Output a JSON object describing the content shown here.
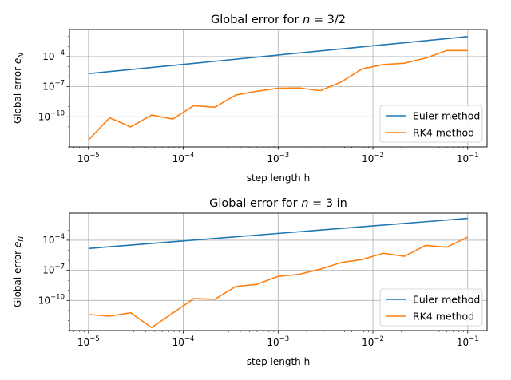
{
  "chart_data": [
    {
      "type": "line",
      "title": "Global error for n = 3/2",
      "title_parts": {
        "prefix": "Global error for ",
        "var": "n",
        "suffix": " = 3/2"
      },
      "xlabel": "step length h",
      "ylabel": "Global error e_N",
      "ylabel_parts": {
        "base": "Global error ",
        "var": "e",
        "sub": "N"
      },
      "xscale": "log",
      "yscale": "log",
      "xlim": [
        6.3e-06,
        0.16
      ],
      "ylim": [
        1e-13,
        0.05
      ],
      "x_ticks": [
        {
          "value": 1e-05,
          "label": "10",
          "exp": "−5"
        },
        {
          "value": 0.0001,
          "label": "10",
          "exp": "−4"
        },
        {
          "value": 0.001,
          "label": "10",
          "exp": "−3"
        },
        {
          "value": 0.01,
          "label": "10",
          "exp": "−2"
        },
        {
          "value": 0.1,
          "label": "10",
          "exp": "−1"
        }
      ],
      "y_ticks": [
        {
          "value": 1e-10,
          "label": "10",
          "exp": "−10"
        },
        {
          "value": 1e-07,
          "label": "10",
          "exp": "−7"
        },
        {
          "value": 0.0001,
          "label": "10",
          "exp": "−4"
        }
      ],
      "grid": true,
      "legend_position": "lower-right",
      "series": [
        {
          "name": "Euler method",
          "color": "#1f77b4",
          "points": [
            [
              1e-05,
              2e-06
            ],
            [
              0.1,
              0.01
            ]
          ]
        },
        {
          "name": "RK4 method",
          "color": "#ff7f0e",
          "points": [
            [
              1e-05,
              5e-13
            ],
            [
              1.67e-05,
              8e-11
            ],
            [
              2.78e-05,
              1e-11
            ],
            [
              4.64e-05,
              1.5e-10
            ],
            [
              7.74e-05,
              6e-11
            ],
            [
              0.000129,
              1.3e-09
            ],
            [
              0.000215,
              9e-10
            ],
            [
              0.000359,
              1.5e-08
            ],
            [
              0.000599,
              3.5e-08
            ],
            [
              0.001,
              7e-08
            ],
            [
              0.00167,
              7.5e-08
            ],
            [
              0.00278,
              4e-08
            ],
            [
              0.00464,
              3e-07
            ],
            [
              0.00774,
              6e-06
            ],
            [
              0.0129,
              1.6e-05
            ],
            [
              0.0215,
              2.2e-05
            ],
            [
              0.0359,
              7e-05
            ],
            [
              0.0599,
              0.0004
            ],
            [
              0.1,
              0.0004
            ]
          ]
        }
      ]
    },
    {
      "type": "line",
      "title": "Global error for n = 3 in",
      "title_parts": {
        "prefix": "Global error for ",
        "var": "n",
        "suffix": " = 3 in"
      },
      "xlabel": "step length h",
      "ylabel": "Global error e_N",
      "ylabel_parts": {
        "base": "Global error ",
        "var": "e",
        "sub": "N"
      },
      "xscale": "log",
      "yscale": "log",
      "xlim": [
        6.3e-06,
        0.16
      ],
      "ylim": [
        1e-13,
        0.05
      ],
      "x_ticks": [
        {
          "value": 1e-05,
          "label": "10",
          "exp": "−5"
        },
        {
          "value": 0.0001,
          "label": "10",
          "exp": "−4"
        },
        {
          "value": 0.001,
          "label": "10",
          "exp": "−3"
        },
        {
          "value": 0.01,
          "label": "10",
          "exp": "−2"
        },
        {
          "value": 0.1,
          "label": "10",
          "exp": "−1"
        }
      ],
      "y_ticks": [
        {
          "value": 1e-10,
          "label": "10",
          "exp": "−10"
        },
        {
          "value": 1e-07,
          "label": "10",
          "exp": "−7"
        },
        {
          "value": 0.0001,
          "label": "10",
          "exp": "−4"
        }
      ],
      "grid": true,
      "legend_position": "lower-right",
      "series": [
        {
          "name": "Euler method",
          "color": "#1f77b4",
          "points": [
            [
              1e-05,
              1.5e-05
            ],
            [
              0.1,
              0.015
            ]
          ]
        },
        {
          "name": "RK4 method",
          "color": "#ff7f0e",
          "points": [
            [
              1e-05,
              4e-12
            ],
            [
              1.67e-05,
              2.7e-12
            ],
            [
              2.78e-05,
              6e-12
            ],
            [
              4.64e-05,
              2e-13
            ],
            [
              0.000129,
              1.5e-10
            ],
            [
              0.000215,
              1.3e-10
            ],
            [
              0.000359,
              2.5e-09
            ],
            [
              0.000599,
              4e-09
            ],
            [
              0.001,
              2.5e-08
            ],
            [
              0.00167,
              4e-08
            ],
            [
              0.00278,
              1.3e-07
            ],
            [
              0.00464,
              6e-07
            ],
            [
              0.00774,
              1.2e-06
            ],
            [
              0.0129,
              5e-06
            ],
            [
              0.0215,
              2.5e-06
            ],
            [
              0.0359,
              3e-05
            ],
            [
              0.0599,
              2e-05
            ],
            [
              0.1,
              0.0002
            ]
          ]
        }
      ]
    }
  ]
}
